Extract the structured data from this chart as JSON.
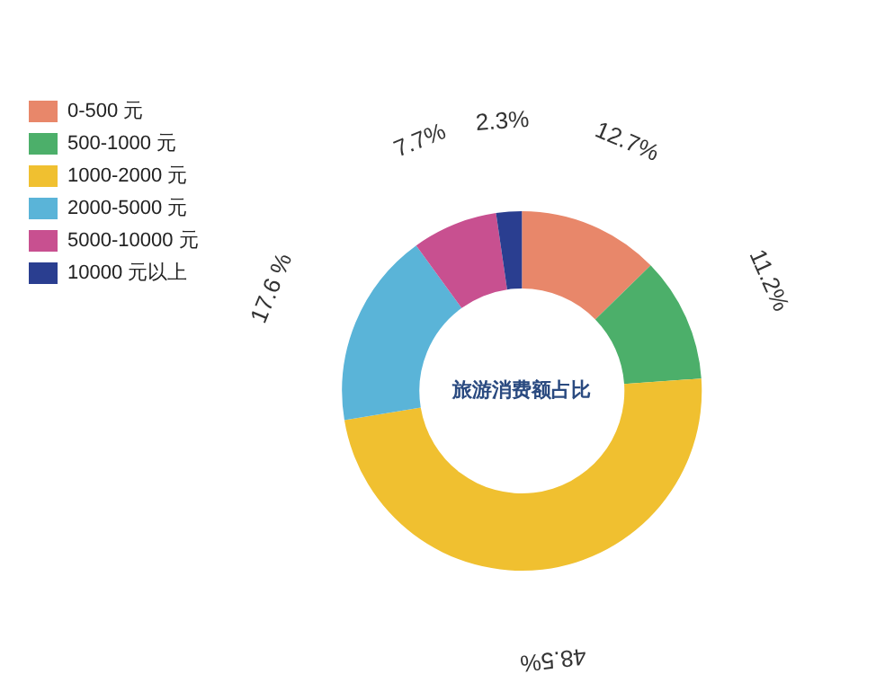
{
  "chart_data": {
    "type": "donut",
    "title": "旅游消费额占比",
    "categories": [
      "0-500 元",
      "500-1000 元",
      "1000-2000 元",
      "2000-5000 元",
      "5000-10000 元",
      "10000 元以上"
    ],
    "values": [
      12.7,
      11.2,
      48.5,
      17.6,
      7.7,
      2.3
    ],
    "value_labels": [
      "12.7%",
      "11.2%",
      "48.5%",
      "17.6 %",
      "7.7%",
      "2.3%"
    ],
    "colors": [
      "#e8876a",
      "#4caf6a",
      "#f0c030",
      "#5ab4d8",
      "#c85090",
      "#2a3e90"
    ],
    "legend": "top left"
  }
}
